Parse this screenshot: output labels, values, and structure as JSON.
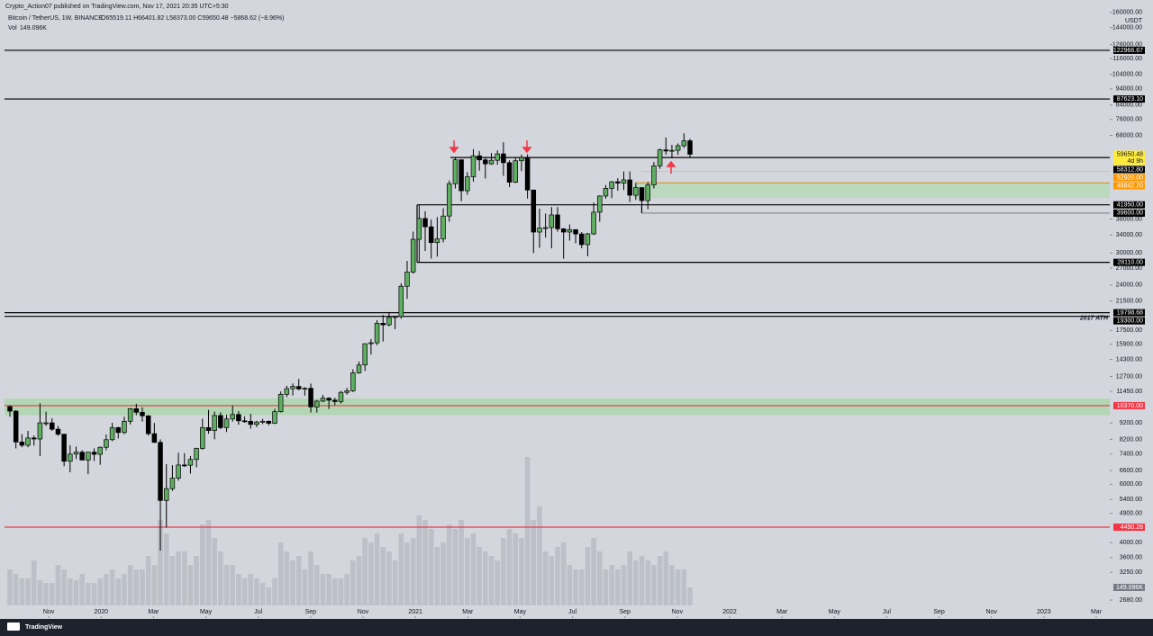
{
  "chart_data": {
    "type": "candlestick",
    "publisher_note": "Crypto_Action07 published on TradingView.com, Nov 17, 2021 20:35 UTC+5:30",
    "title": "Bitcoin / TetherUS, 1W, BINANCE",
    "ohlc_line": "O65519.11 H66401.82 L58373.00 C59650.48 −5868.62 (−8.96%)",
    "volume_title": "Vol",
    "volume_value_label": "149.096K",
    "currency": "USDT",
    "last_price_label": "59650.48",
    "countdown": "4d 9h",
    "brand": "TradingView",
    "yscale": "log",
    "grid": false,
    "ylim": [
      2365,
      166000
    ],
    "yticks": [
      {
        "value": 160000,
        "label": "160000.00"
      },
      {
        "value": 144000,
        "label": "144000.00"
      },
      {
        "value": 128000,
        "label": "128000.00"
      },
      {
        "value": 116000,
        "label": "116000.00"
      },
      {
        "value": 104000,
        "label": "104000.00"
      },
      {
        "value": 94000,
        "label": "94000.00"
      },
      {
        "value": 84000,
        "label": "84000.00"
      },
      {
        "value": 76000,
        "label": "76000.00"
      },
      {
        "value": 68000,
        "label": "68000.00"
      },
      {
        "value": 38000,
        "label": "38000.00"
      },
      {
        "value": 34000,
        "label": "34000.00"
      },
      {
        "value": 30000,
        "label": "30000.00"
      },
      {
        "value": 27000,
        "label": "27000.00"
      },
      {
        "value": 24000,
        "label": "24000.00"
      },
      {
        "value": 21500,
        "label": "21500.00"
      },
      {
        "value": 17500,
        "label": "17500.00"
      },
      {
        "value": 15900,
        "label": "15900.00"
      },
      {
        "value": 14300,
        "label": "14300.00"
      },
      {
        "value": 12700,
        "label": "12700.00"
      },
      {
        "value": 11450,
        "label": "11450.00"
      },
      {
        "value": 9200,
        "label": "9200.00"
      },
      {
        "value": 8200,
        "label": "8200.00"
      },
      {
        "value": 7400,
        "label": "7400.00"
      },
      {
        "value": 6600,
        "label": "6600.00"
      },
      {
        "value": 6000,
        "label": "6000.00"
      },
      {
        "value": 5400,
        "label": "5400.00"
      },
      {
        "value": 4900,
        "label": "4900.00"
      },
      {
        "value": 4000,
        "label": "4000.00"
      },
      {
        "value": 3600,
        "label": "3600.00"
      },
      {
        "value": 3250,
        "label": "3250.00"
      },
      {
        "value": 2680,
        "label": "2680.00"
      }
    ],
    "xlim": [
      "2019-09",
      "2023-03"
    ],
    "xticks": [
      {
        "value": "2019-11",
        "label": "Nov"
      },
      {
        "value": "2020-01",
        "label": "2020"
      },
      {
        "value": "2020-03",
        "label": "Mar"
      },
      {
        "value": "2020-05",
        "label": "May"
      },
      {
        "value": "2020-07",
        "label": "Jul"
      },
      {
        "value": "2020-09",
        "label": "Sep"
      },
      {
        "value": "2020-11",
        "label": "Nov"
      },
      {
        "value": "2021-01",
        "label": "2021"
      },
      {
        "value": "2021-03",
        "label": "Mar"
      },
      {
        "value": "2021-05",
        "label": "May"
      },
      {
        "value": "2021-07",
        "label": "Jul"
      },
      {
        "value": "2021-09",
        "label": "Sep"
      },
      {
        "value": "2021-11",
        "label": "Nov"
      },
      {
        "value": "2022-01",
        "label": "2022"
      },
      {
        "value": "2022-03",
        "label": "Mar"
      },
      {
        "value": "2022-05",
        "label": "May"
      },
      {
        "value": "2022-07",
        "label": "Jul"
      },
      {
        "value": "2022-09",
        "label": "Sep"
      },
      {
        "value": "2022-11",
        "label": "Nov"
      },
      {
        "value": "2023-01",
        "label": "2023"
      },
      {
        "value": "2023-03",
        "label": "Mar"
      }
    ],
    "up_color": "#5fae62",
    "down_color": "#000000",
    "volume_color": "#b9bcc4",
    "ohlc": [
      [
        10300,
        10380,
        9600,
        9980
      ],
      [
        9980,
        10050,
        7700,
        8050
      ],
      [
        8050,
        8500,
        7760,
        7870
      ],
      [
        7870,
        8700,
        7760,
        8280
      ],
      [
        8280,
        8420,
        7850,
        8220
      ],
      [
        8220,
        10540,
        7300,
        9200
      ],
      [
        9200,
        9940,
        9000,
        9200
      ],
      [
        9200,
        9500,
        8700,
        8800
      ],
      [
        8800,
        9000,
        8400,
        8500
      ],
      [
        8500,
        8500,
        6800,
        7040
      ],
      [
        7040,
        7870,
        6520,
        7400
      ],
      [
        7400,
        7800,
        7150,
        7500
      ],
      [
        7500,
        7600,
        7100,
        7100
      ],
      [
        7100,
        7520,
        6430,
        7500
      ],
      [
        7500,
        7700,
        7050,
        7390
      ],
      [
        7390,
        7800,
        6870,
        7760
      ],
      [
        7760,
        8480,
        7600,
        8180
      ],
      [
        8180,
        9200,
        8100,
        8900
      ],
      [
        8900,
        8950,
        8250,
        8600
      ],
      [
        8600,
        9600,
        8500,
        9300
      ],
      [
        9300,
        10200,
        9100,
        10150
      ],
      [
        10150,
        10500,
        9700,
        9900
      ],
      [
        9900,
        10250,
        9280,
        9660
      ],
      [
        9660,
        9700,
        8420,
        8530
      ],
      [
        8530,
        9190,
        8000,
        8030
      ],
      [
        8030,
        8200,
        3780,
        5360
      ],
      [
        5360,
        6900,
        4440,
        5820
      ],
      [
        5820,
        6850,
        5730,
        6260
      ],
      [
        6260,
        7470,
        6150,
        6860
      ],
      [
        6860,
        7450,
        6770,
        6850
      ],
      [
        6850,
        7300,
        6460,
        7130
      ],
      [
        7130,
        7740,
        6750,
        7700
      ],
      [
        7700,
        9470,
        7630,
        8900
      ],
      [
        8900,
        10070,
        8530,
        8720
      ],
      [
        8720,
        9950,
        8200,
        9680
      ],
      [
        9680,
        9900,
        8800,
        8900
      ],
      [
        8900,
        9730,
        8630,
        9450
      ],
      [
        9450,
        10380,
        9270,
        9750
      ],
      [
        9750,
        9990,
        9080,
        9330
      ],
      [
        9330,
        9620,
        9200,
        9300
      ],
      [
        9300,
        9800,
        8830,
        9100
      ],
      [
        9100,
        9330,
        8930,
        9250
      ],
      [
        9250,
        9460,
        9120,
        9300
      ],
      [
        9300,
        9350,
        9050,
        9170
      ],
      [
        9170,
        10150,
        9120,
        9940
      ],
      [
        9940,
        11450,
        9880,
        11220
      ],
      [
        11220,
        11900,
        11000,
        11670
      ],
      [
        11670,
        12100,
        11130,
        11850
      ],
      [
        11850,
        12490,
        11550,
        11650
      ],
      [
        11650,
        11780,
        11120,
        11700
      ],
      [
        11700,
        12090,
        9880,
        10280
      ],
      [
        10280,
        10790,
        9880,
        10700
      ],
      [
        10700,
        11180,
        10620,
        10920
      ],
      [
        10920,
        10990,
        10130,
        10770
      ],
      [
        10770,
        10950,
        10400,
        10670
      ],
      [
        10670,
        11490,
        10530,
        11370
      ],
      [
        11370,
        11730,
        11200,
        11500
      ],
      [
        11500,
        13350,
        11400,
        13030
      ],
      [
        13030,
        14100,
        12950,
        13760
      ],
      [
        13760,
        15960,
        13200,
        15960
      ],
      [
        15960,
        16480,
        14800,
        16060
      ],
      [
        16060,
        18800,
        15800,
        18400
      ],
      [
        18400,
        19500,
        16200,
        18200
      ],
      [
        18200,
        19900,
        18000,
        19150
      ],
      [
        19150,
        19400,
        17650,
        19270
      ],
      [
        19270,
        24300,
        19000,
        23800
      ],
      [
        23800,
        28400,
        21800,
        26270
      ],
      [
        26270,
        34800,
        26000,
        33000
      ],
      [
        33000,
        41950,
        28130,
        38150
      ],
      [
        38150,
        40100,
        30420,
        36000
      ],
      [
        36000,
        37850,
        28850,
        32250
      ],
      [
        32250,
        38530,
        29240,
        33100
      ],
      [
        33100,
        40950,
        32300,
        38800
      ],
      [
        38800,
        49700,
        37300,
        48600
      ],
      [
        48600,
        58350,
        47000,
        57400
      ],
      [
        57400,
        57500,
        43000,
        46270
      ],
      [
        46270,
        52650,
        45000,
        51000
      ],
      [
        51000,
        61800,
        49300,
        59000
      ],
      [
        59000,
        61000,
        53200,
        57350
      ],
      [
        57350,
        58400,
        50400,
        55800
      ],
      [
        55800,
        60200,
        55400,
        57200
      ],
      [
        57200,
        61300,
        55470,
        59800
      ],
      [
        59800,
        64850,
        51300,
        56250
      ],
      [
        56250,
        57200,
        47500,
        49100
      ],
      [
        49100,
        58500,
        48800,
        57000
      ],
      [
        57000,
        59500,
        53000,
        58300
      ],
      [
        58300,
        59600,
        43800,
        46500
      ],
      [
        46500,
        46600,
        30000,
        34700
      ],
      [
        34700,
        40850,
        31100,
        35700
      ],
      [
        35700,
        39500,
        33400,
        35800
      ],
      [
        35800,
        41300,
        31000,
        39100
      ],
      [
        39100,
        41300,
        34800,
        35500
      ],
      [
        35500,
        35700,
        28800,
        34700
      ],
      [
        34700,
        36600,
        32700,
        35300
      ],
      [
        35300,
        35300,
        32100,
        34250
      ],
      [
        34250,
        34700,
        31000,
        31800
      ],
      [
        31800,
        34500,
        29300,
        34270
      ],
      [
        34270,
        42600,
        34000,
        39850
      ],
      [
        39850,
        44800,
        37300,
        44600
      ],
      [
        44600,
        48150,
        43800,
        47050
      ],
      [
        47050,
        49500,
        43950,
        49250
      ],
      [
        49250,
        50500,
        46300,
        48800
      ],
      [
        48800,
        52900,
        46500,
        49900
      ],
      [
        49900,
        52900,
        42800,
        44850
      ],
      [
        44850,
        48800,
        43400,
        47300
      ],
      [
        47300,
        47400,
        39600,
        43200
      ],
      [
        43200,
        49200,
        40700,
        48200
      ],
      [
        48200,
        56500,
        47000,
        55000
      ],
      [
        55000,
        62000,
        53900,
        61500
      ],
      [
        61500,
        67000,
        59500,
        61000
      ],
      [
        61000,
        63700,
        58000,
        61300
      ],
      [
        61300,
        64300,
        59400,
        63300
      ],
      [
        63300,
        69000,
        62300,
        65519.11
      ],
      [
        65519.11,
        66401.82,
        58373.0,
        59650.48
      ]
    ],
    "volume": [
      298000,
      261000,
      224000,
      224000,
      373000,
      209000,
      186000,
      186000,
      335000,
      298000,
      224000,
      209000,
      261000,
      186000,
      186000,
      224000,
      261000,
      298000,
      224000,
      261000,
      335000,
      298000,
      298000,
      410000,
      335000,
      708000,
      596000,
      410000,
      447000,
      447000,
      335000,
      410000,
      671000,
      708000,
      559000,
      447000,
      335000,
      335000,
      261000,
      224000,
      261000,
      224000,
      186000,
      149000,
      224000,
      522000,
      447000,
      373000,
      410000,
      298000,
      447000,
      335000,
      261000,
      261000,
      224000,
      224000,
      261000,
      373000,
      410000,
      559000,
      522000,
      596000,
      485000,
      447000,
      373000,
      596000,
      522000,
      559000,
      746000,
      708000,
      634000,
      485000,
      522000,
      671000,
      634000,
      708000,
      559000,
      596000,
      485000,
      447000,
      410000,
      373000,
      559000,
      634000,
      596000,
      559000,
      1230000,
      708000,
      820000,
      447000,
      410000,
      485000,
      522000,
      335000,
      298000,
      298000,
      485000,
      559000,
      447000,
      298000,
      335000,
      298000,
      335000,
      447000,
      373000,
      410000,
      373000,
      335000,
      410000,
      447000,
      335000,
      298000,
      298000,
      149096
    ],
    "levels": [
      {
        "value": 122966.67,
        "label": "122966.67",
        "color": "#000000"
      },
      {
        "value": 87623.1,
        "label": "87623.10",
        "color": "#000000"
      },
      {
        "value": 58312.8,
        "label": "58312.80",
        "color": "#000000"
      },
      {
        "value": 52920,
        "label": "52920.00",
        "color": "#ff9800"
      },
      {
        "value": 48842.2,
        "label": "48842.20",
        "color": "#ff9800"
      },
      {
        "value": 41950,
        "label": "41950.00",
        "color": "#000000"
      },
      {
        "value": 39600,
        "label": "39600.00",
        "color": "#000000"
      },
      {
        "value": 28110,
        "label": "28110.00",
        "color": "#000000"
      },
      {
        "value": 19798.68,
        "label": "19798.68",
        "color": "#000000"
      },
      {
        "value": 19300,
        "label": "19300.00",
        "color": "#000000",
        "note": "2017 ATH"
      },
      {
        "value": 10370,
        "label": "10370.00",
        "color": "#f23645"
      },
      {
        "value": 4450.28,
        "label": "4450.28",
        "color": "#f23645"
      }
    ],
    "zones": [
      {
        "low": 9700,
        "high": 10900,
        "color": "#a8d5a6"
      },
      {
        "low": 44000,
        "high": 48842.2,
        "color": "#b3d9b4"
      }
    ]
  }
}
